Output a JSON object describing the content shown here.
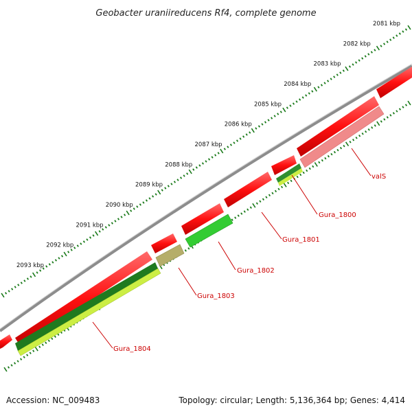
{
  "title": "Geobacter uraniireducens Rf4, complete genome",
  "accession": "Accession: NC_009483",
  "summary": "Topology: circular; Length: 5,136,364 bp; Genes: 4,414",
  "ticks": [
    "2081 kbp",
    "2082 kbp",
    "2083 kbp",
    "2084 kbp",
    "2085 kbp",
    "2086 kbp",
    "2087 kbp",
    "2088 kbp",
    "2089 kbp",
    "2090 kbp",
    "2091 kbp",
    "2092 kbp",
    "2093 kbp"
  ],
  "genes": [
    {
      "name": "valS",
      "strand": "minus",
      "color": "#f08a8a"
    },
    {
      "name": "Gura_1800",
      "strand": "minus",
      "color": "#2f8f2f"
    },
    {
      "name": "Gura_1801",
      "strand": "minus",
      "color": "#ff2020"
    },
    {
      "name": "Gura_1802",
      "strand": "minus",
      "color": "#33cc33"
    },
    {
      "name": "Gura_1803",
      "strand": "minus",
      "color": "#b5ae6a"
    },
    {
      "name": "Gura_1804",
      "strand": "minus",
      "color": "#1f7a1f"
    }
  ],
  "colors": {
    "cds": "#ff1a1a",
    "backbone": "#888888",
    "tick": "#1a7a1a",
    "label": "#cc0000"
  }
}
